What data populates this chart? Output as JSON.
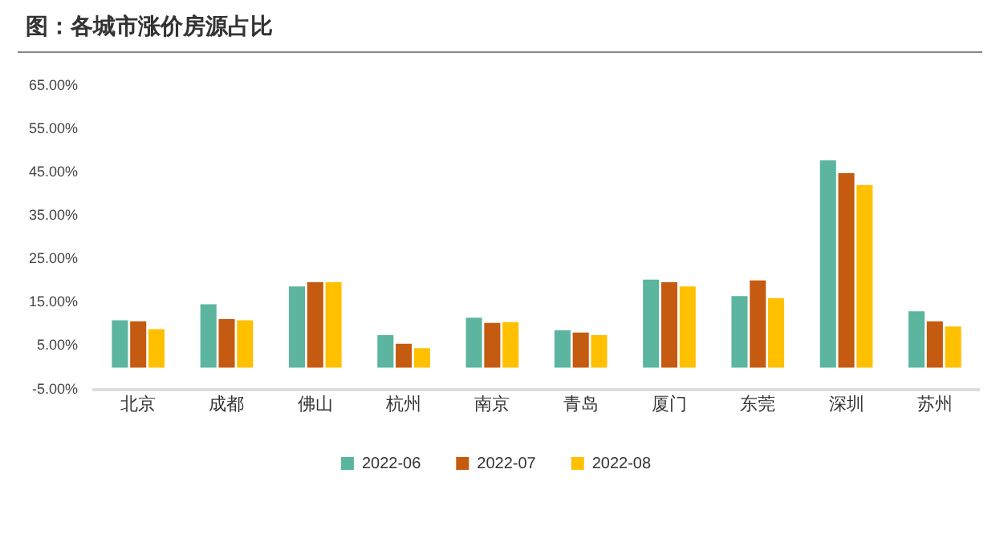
{
  "chart_data": {
    "type": "bar",
    "title": "图：各城市涨价房源占比",
    "categories": [
      "北京",
      "成都",
      "佛山",
      "杭州",
      "南京",
      "青岛",
      "厦门",
      "东莞",
      "深圳",
      "苏州"
    ],
    "series": [
      {
        "name": "2022-06",
        "color": "#5bb59f",
        "values": [
          10.9,
          14.6,
          18.7,
          7.5,
          11.5,
          8.6,
          20.3,
          16.5,
          47.8,
          13.0
        ]
      },
      {
        "name": "2022-07",
        "color": "#c55a11",
        "values": [
          10.7,
          11.2,
          19.7,
          5.5,
          10.3,
          8.1,
          19.7,
          20.1,
          44.8,
          10.7
        ]
      },
      {
        "name": "2022-08",
        "color": "#ffc000",
        "values": [
          8.9,
          10.9,
          19.7,
          4.5,
          10.5,
          7.5,
          18.7,
          16.0,
          42.1,
          9.5
        ]
      }
    ],
    "ylim": [
      -5,
      65
    ],
    "yticks": [
      {
        "value": -5,
        "label": "-5.00%"
      },
      {
        "value": 5,
        "label": "5.00%"
      },
      {
        "value": 15,
        "label": "15.00%"
      },
      {
        "value": 25,
        "label": "25.00%"
      },
      {
        "value": 35,
        "label": "35.00%"
      },
      {
        "value": 45,
        "label": "45.00%"
      },
      {
        "value": 55,
        "label": "55.00%"
      },
      {
        "value": 65,
        "label": "65.00%"
      }
    ],
    "grid": false,
    "legend": "bottom"
  }
}
